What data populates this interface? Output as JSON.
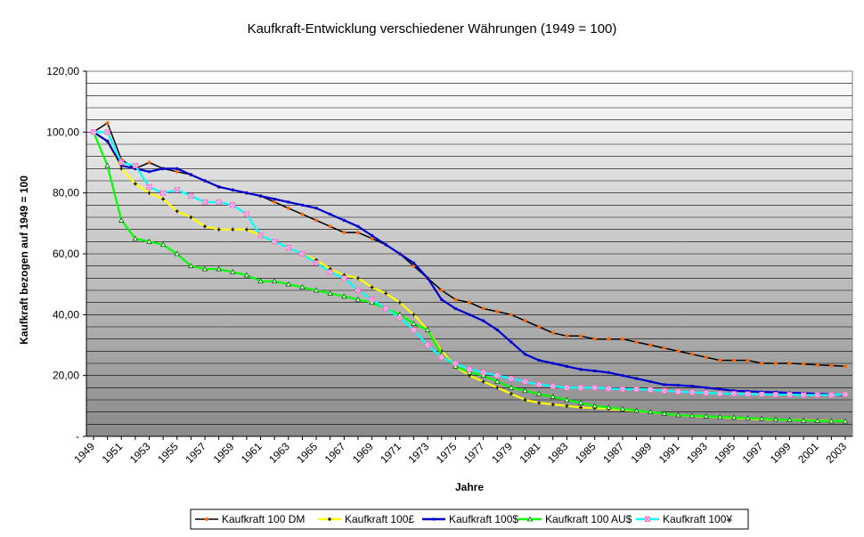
{
  "chart_data": {
    "type": "line",
    "title": "Kaufkraft-Entwicklung verschiedener Währungen (1949 = 100)",
    "xlabel": "Jahre",
    "ylabel": "Kaufkraft bezogen auf 1949 = 100",
    "ylim": [
      0,
      120
    ],
    "y_ticks": [
      "-",
      "20,00",
      "40,00",
      "60,00",
      "80,00",
      "100,00",
      "120,00"
    ],
    "x_tick_labels": [
      "1949",
      "1951",
      "1953",
      "1955",
      "1957",
      "1959",
      "1961",
      "1963",
      "1965",
      "1967",
      "1969",
      "1971",
      "1973",
      "1975",
      "1977",
      "1979",
      "1981",
      "1983",
      "1985",
      "1987",
      "1989",
      "1991",
      "1993",
      "1995",
      "1997",
      "1999",
      "2001",
      "2003"
    ],
    "x": [
      1949,
      1950,
      1951,
      1952,
      1953,
      1954,
      1955,
      1956,
      1957,
      1958,
      1959,
      1960,
      1961,
      1962,
      1963,
      1964,
      1965,
      1966,
      1967,
      1968,
      1969,
      1970,
      1971,
      1972,
      1973,
      1974,
      1975,
      1976,
      1977,
      1978,
      1979,
      1980,
      1981,
      1982,
      1983,
      1984,
      1985,
      1986,
      1987,
      1988,
      1989,
      1990,
      1991,
      1992,
      1993,
      1994,
      1995,
      1996,
      1997,
      1998,
      1999,
      2000,
      2001,
      2002,
      2003
    ],
    "legend_position": "bottom",
    "series": [
      {
        "name": "Kaufkraft 100 DM",
        "color": "#000000",
        "marker_color": "#ff6600",
        "values": [
          100,
          103,
          91,
          88,
          90,
          88,
          87,
          86,
          84,
          82,
          81,
          80,
          79,
          77,
          75,
          73,
          71,
          69,
          67,
          67,
          65,
          63,
          60,
          56,
          52,
          48,
          45,
          44,
          42,
          41,
          40,
          38,
          36,
          34,
          33,
          33,
          32,
          32,
          32,
          31,
          30,
          29,
          28,
          27,
          26,
          25,
          25,
          25,
          24,
          24,
          24,
          23.8,
          23.5,
          23.3,
          23
        ]
      },
      {
        "name": "Kaufkraft 100£",
        "color": "#ffff00",
        "marker_color": "#000000",
        "values": [
          100,
          97,
          88,
          83,
          80,
          78,
          74,
          72,
          69,
          68,
          68,
          68,
          66,
          64,
          62,
          60,
          58,
          55,
          53,
          52,
          49,
          47,
          44,
          40,
          35,
          28,
          23,
          20,
          18,
          16,
          14,
          12,
          11,
          10.5,
          10,
          9.5,
          9.3,
          9,
          8.7,
          8.3,
          8,
          7.5,
          7,
          6.7,
          6.5,
          6.3,
          6,
          5.8,
          5.6,
          5.5,
          5.4,
          5.3,
          5.2,
          5.1,
          5
        ]
      },
      {
        "name": "Kaufkraft 100$",
        "color": "#0000cc",
        "marker_color": "#0000cc",
        "values": [
          100,
          97,
          89,
          88,
          87,
          88,
          88,
          86,
          84,
          82,
          81,
          80,
          79,
          78,
          77,
          76,
          75,
          73,
          71,
          69,
          66,
          63,
          60,
          57,
          52,
          45,
          42,
          40,
          38,
          35,
          31,
          27,
          25,
          24,
          23,
          22,
          21.5,
          21,
          20,
          19,
          18,
          17,
          16.8,
          16.5,
          16,
          15.5,
          15,
          14.8,
          14.6,
          14.5,
          14.3,
          14.2,
          14,
          13.8,
          13.5
        ]
      },
      {
        "name": "Kaufkraft 100 AU$",
        "color": "#00ff00",
        "marker_color": "#006600",
        "values": [
          100,
          89,
          71,
          65,
          64,
          63,
          60,
          56,
          55,
          55,
          54,
          53,
          51,
          51,
          50,
          49,
          48,
          47,
          46,
          45,
          44,
          42,
          40,
          37,
          35,
          27,
          23,
          21,
          20,
          18,
          16,
          15,
          14,
          13,
          12,
          11,
          10,
          9.5,
          9,
          8.5,
          8,
          7.5,
          7,
          6.8,
          6.6,
          6.4,
          6.2,
          6,
          5.8,
          5.6,
          5.4,
          5.2,
          5.1,
          5,
          5
        ]
      },
      {
        "name": "Kaufkraft 100¥",
        "color": "#00ffff",
        "marker_color": "#ff66cc",
        "values": [
          100,
          100,
          90,
          89,
          82,
          80,
          81,
          79,
          77,
          77,
          76,
          73,
          66,
          64,
          62,
          60,
          57,
          54,
          52,
          48,
          45,
          42,
          39,
          35,
          30,
          26,
          24,
          22,
          21,
          20,
          19,
          18,
          17,
          16.5,
          16,
          16,
          16,
          15.7,
          15.5,
          15.5,
          15.3,
          15,
          14.7,
          14.5,
          14.3,
          14.1,
          14,
          13.9,
          13.8,
          13.7,
          13.7,
          13.6,
          13.6,
          13.6,
          13.8
        ]
      }
    ]
  }
}
